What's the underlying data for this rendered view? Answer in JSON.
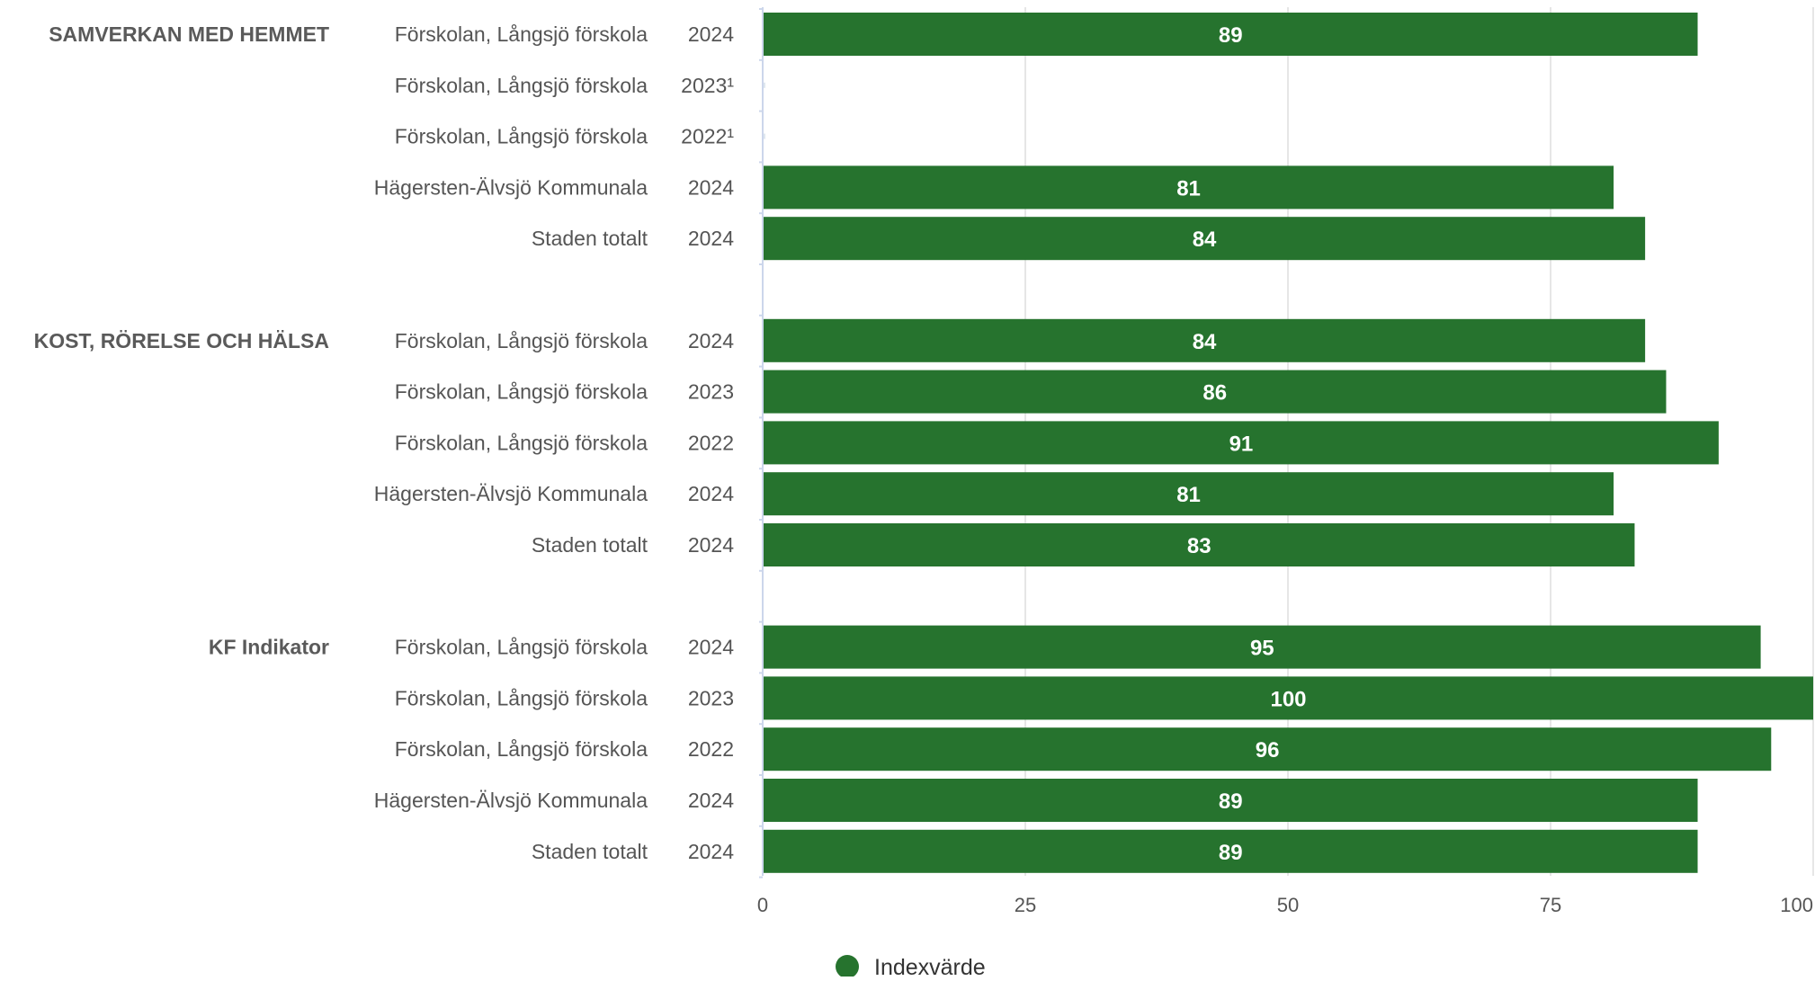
{
  "chart_data": {
    "type": "bar",
    "orientation": "horizontal",
    "xlim": [
      0,
      100
    ],
    "x_ticks": [
      "0",
      "25",
      "50",
      "75",
      "100"
    ],
    "grid": true,
    "legend_position": "bottom-center",
    "bar_color": "#26732e",
    "series": [
      {
        "name": "Indexvärde"
      }
    ],
    "groups": [
      {
        "label": "SAMVERKAN MED HEMMET",
        "rows": [
          {
            "name": "Förskolan, Långsjö förskola",
            "year": "2024",
            "value": 89,
            "value_label": "89"
          },
          {
            "name": "Förskolan, Långsjö förskola",
            "year": "2023¹",
            "value": null,
            "value_label": ""
          },
          {
            "name": "Förskolan, Långsjö förskola",
            "year": "2022¹",
            "value": null,
            "value_label": ""
          },
          {
            "name": "Hägersten-Älvsjö Kommunala",
            "year": "2024",
            "value": 81,
            "value_label": "81"
          },
          {
            "name": "Staden totalt",
            "year": "2024",
            "value": 84,
            "value_label": "84"
          }
        ]
      },
      {
        "label": "KOST, RÖRELSE OCH HÄLSA",
        "rows": [
          {
            "name": "Förskolan, Långsjö förskola",
            "year": "2024",
            "value": 84,
            "value_label": "84"
          },
          {
            "name": "Förskolan, Långsjö förskola",
            "year": "2023",
            "value": 86,
            "value_label": "86"
          },
          {
            "name": "Förskolan, Långsjö förskola",
            "year": "2022",
            "value": 91,
            "value_label": "91"
          },
          {
            "name": "Hägersten-Älvsjö Kommunala",
            "year": "2024",
            "value": 81,
            "value_label": "81"
          },
          {
            "name": "Staden totalt",
            "year": "2024",
            "value": 83,
            "value_label": "83"
          }
        ]
      },
      {
        "label": "KF Indikator",
        "rows": [
          {
            "name": "Förskolan, Långsjö förskola",
            "year": "2024",
            "value": 95,
            "value_label": "95"
          },
          {
            "name": "Förskolan, Långsjö förskola",
            "year": "2023",
            "value": 100,
            "value_label": "100"
          },
          {
            "name": "Förskolan, Långsjö förskola",
            "year": "2022",
            "value": 96,
            "value_label": "96"
          },
          {
            "name": "Hägersten-Älvsjö Kommunala",
            "year": "2024",
            "value": 89,
            "value_label": "89"
          },
          {
            "name": "Staden totalt",
            "year": "2024",
            "value": 89,
            "value_label": "89"
          }
        ]
      }
    ]
  }
}
